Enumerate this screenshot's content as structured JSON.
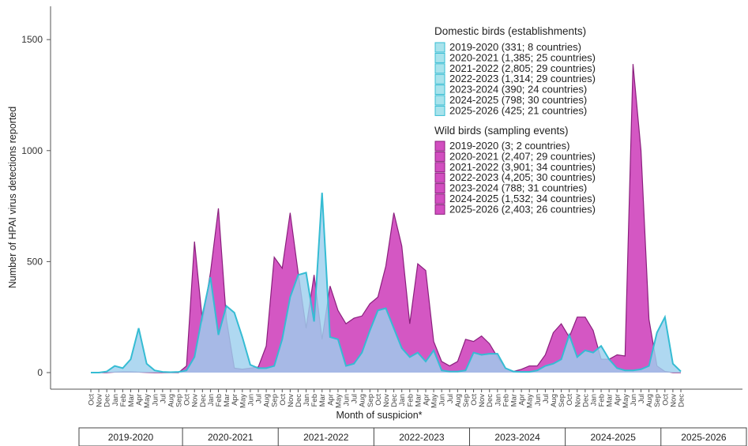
{
  "chart_data": {
    "type": "area",
    "ylabel": "Number of HPAI virus detections reported",
    "xlabel": "Month of suspicion*",
    "ylim": [
      0,
      1650
    ],
    "yticks": [
      0,
      500,
      1000,
      1500
    ],
    "grid": false,
    "legend_position": "top-right",
    "months": [
      "Oct",
      "Nov",
      "Dec",
      "Jan",
      "Feb",
      "Mar",
      "Apr",
      "May",
      "Jun",
      "Jul",
      "Aug",
      "Sep",
      "Oct",
      "Nov",
      "Dec",
      "Jan",
      "Feb",
      "Mar",
      "Apr",
      "May",
      "Jun",
      "Jul",
      "Aug",
      "Sep",
      "Oct",
      "Nov",
      "Dec",
      "Jan",
      "Feb",
      "Mar",
      "Apr",
      "May",
      "Jun",
      "Jul",
      "Aug",
      "Sep",
      "Oct",
      "Nov",
      "Dec",
      "Jan",
      "Feb",
      "Mar",
      "Apr",
      "May",
      "Jun",
      "Jul",
      "Aug",
      "Sep",
      "Oct",
      "Nov",
      "Dec",
      "Jan",
      "Feb",
      "Mar",
      "Apr",
      "May",
      "Jun",
      "Jul",
      "Aug",
      "Sep",
      "Oct",
      "Nov",
      "Dec",
      "Jan",
      "Feb",
      "Mar",
      "Apr",
      "May",
      "Jun",
      "Jul",
      "Aug",
      "Sep",
      "Oct",
      "Nov",
      "Dec"
    ],
    "seasons": [
      "2019-2020",
      "2020-2021",
      "2021-2022",
      "2022-2023",
      "2023-2024",
      "2024-2025",
      "2025-2026"
    ],
    "series": [
      {
        "name": "Wild birds (sampling events)",
        "color": "#c43cb0",
        "values": [
          0,
          0,
          0,
          2,
          3,
          3,
          2,
          1,
          0,
          0,
          0,
          0,
          30,
          590,
          230,
          450,
          740,
          240,
          20,
          15,
          20,
          25,
          120,
          520,
          470,
          720,
          450,
          200,
          440,
          150,
          390,
          280,
          220,
          245,
          255,
          310,
          340,
          480,
          720,
          570,
          220,
          490,
          460,
          140,
          50,
          30,
          50,
          150,
          140,
          165,
          130,
          70,
          20,
          5,
          15,
          30,
          30,
          80,
          180,
          220,
          160,
          250,
          250,
          190,
          60,
          60,
          80,
          75,
          1390,
          1000,
          240,
          30,
          5,
          0,
          0
        ]
      },
      {
        "name": "Domestic birds (establishments)",
        "color": "#3bbfd4",
        "values": [
          0,
          0,
          5,
          30,
          20,
          60,
          200,
          40,
          10,
          3,
          2,
          3,
          10,
          70,
          260,
          430,
          170,
          300,
          270,
          160,
          35,
          20,
          20,
          30,
          150,
          340,
          440,
          450,
          230,
          810,
          160,
          150,
          30,
          40,
          90,
          190,
          280,
          290,
          200,
          110,
          70,
          90,
          50,
          100,
          10,
          5,
          5,
          10,
          90,
          80,
          85,
          85,
          20,
          5,
          3,
          3,
          10,
          30,
          40,
          60,
          170,
          70,
          100,
          90,
          120,
          60,
          20,
          10,
          10,
          15,
          30,
          180,
          250,
          40,
          5
        ]
      }
    ],
    "legend": {
      "domestic": {
        "title": "Domestic birds (establishments)",
        "entries": [
          "2019-2020 (331; 8 countries)",
          "2020-2021 (1,385; 25 countries)",
          "2021-2022 (2,805; 29 countries)",
          "2022-2023 (1,314; 29 countries)",
          "2023-2024 (390; 24 countries)",
          "2024-2025 (798; 30 countries)",
          "2025-2026 (425; 21 countries)"
        ]
      },
      "wild": {
        "title": "Wild birds (sampling events)",
        "entries": [
          "2019-2020 (3; 2 countries)",
          "2020-2021 (2,407; 29 countries)",
          "2021-2022 (3,901; 34 countries)",
          "2022-2023 (4,205; 30 countries)",
          "2023-2024 (788; 31 countries)",
          "2024-2025 (1,532; 34 countries)",
          "2025-2026 (2,403; 26 countries)"
        ]
      }
    }
  },
  "colors": {
    "wild_fill": "#d24ec0",
    "wild_stroke": "#8a1f7d",
    "domestic_fill": "#9ecfee",
    "domestic_stroke": "#35bcd3",
    "domestic_legend_fill": "#a9e3ec"
  }
}
